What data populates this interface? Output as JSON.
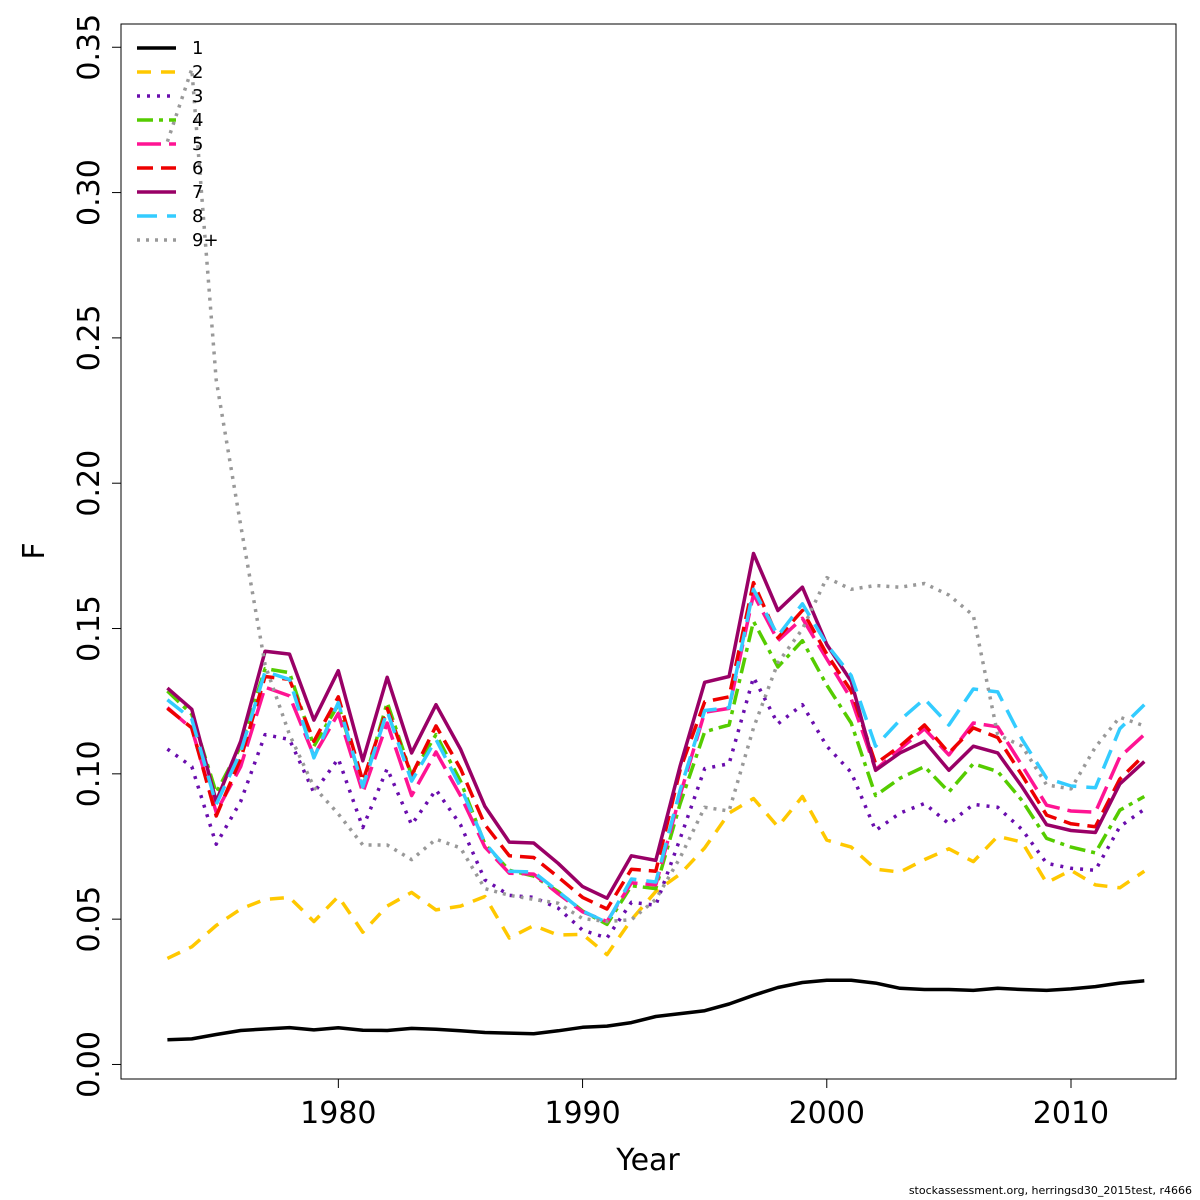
{
  "chart_data": {
    "type": "line",
    "xlabel": "Year",
    "ylabel": "F",
    "xlim": [
      1971.1,
      2014.3
    ],
    "ylim": [
      -0.005,
      0.358
    ],
    "x_ticks": [
      1980,
      1990,
      2000,
      2010
    ],
    "y_ticks": [
      "0.00",
      "0.05",
      "0.10",
      "0.15",
      "0.20",
      "0.25",
      "0.30",
      "0.35"
    ],
    "legend_position": "top-left",
    "x": [
      1973,
      1974,
      1975,
      1976,
      1977,
      1978,
      1979,
      1980,
      1981,
      1982,
      1983,
      1984,
      1985,
      1986,
      1987,
      1988,
      1989,
      1990,
      1991,
      1992,
      1993,
      1994,
      1995,
      1996,
      1997,
      1998,
      1999,
      2000,
      2001,
      2002,
      2003,
      2004,
      2005,
      2006,
      2007,
      2008,
      2009,
      2010,
      2011,
      2012,
      2013
    ],
    "series": [
      {
        "name": "1",
        "color": "#000000",
        "dash": "solid",
        "width": 3.5,
        "values": [
          0.0085,
          0.0088,
          0.0103,
          0.0117,
          0.0122,
          0.0127,
          0.0119,
          0.0126,
          0.0118,
          0.0117,
          0.0124,
          0.0121,
          0.0116,
          0.011,
          0.0108,
          0.0106,
          0.0116,
          0.0128,
          0.0132,
          0.0144,
          0.0165,
          0.0175,
          0.0185,
          0.0208,
          0.0238,
          0.0265,
          0.0282,
          0.029,
          0.029,
          0.028,
          0.0262,
          0.0258,
          0.0258,
          0.0255,
          0.0262,
          0.0258,
          0.0255,
          0.026,
          0.0268,
          0.028,
          0.0288
        ]
      },
      {
        "name": "2",
        "color": "#ffc800",
        "dash": "14,10",
        "width": 3.5,
        "values": [
          0.0365,
          0.0405,
          0.0478,
          0.0535,
          0.0568,
          0.0575,
          0.0492,
          0.0578,
          0.0455,
          0.0545,
          0.0592,
          0.0532,
          0.0545,
          0.0578,
          0.0435,
          0.0478,
          0.0445,
          0.0448,
          0.0378,
          0.0498,
          0.0595,
          0.0655,
          0.0745,
          0.0865,
          0.0915,
          0.0818,
          0.0922,
          0.0772,
          0.0748,
          0.0672,
          0.0662,
          0.0705,
          0.0742,
          0.0698,
          0.0785,
          0.0765,
          0.0625,
          0.0668,
          0.0618,
          0.0608,
          0.0665
        ]
      },
      {
        "name": "3",
        "color": "#6a0dad",
        "dash": "3,7",
        "width": 3.5,
        "values": [
          0.1085,
          0.1025,
          0.0758,
          0.0905,
          0.1135,
          0.1118,
          0.0935,
          0.1052,
          0.0815,
          0.1018,
          0.0825,
          0.0945,
          0.0825,
          0.0635,
          0.0582,
          0.0575,
          0.0538,
          0.0462,
          0.0435,
          0.0558,
          0.0548,
          0.0778,
          0.1018,
          0.1035,
          0.1332,
          0.1172,
          0.1238,
          0.1095,
          0.1005,
          0.0805,
          0.0865,
          0.0898,
          0.0828,
          0.0895,
          0.0885,
          0.0808,
          0.0692,
          0.0675,
          0.0668,
          0.0818,
          0.0878
        ]
      },
      {
        "name": "4",
        "color": "#55cc00",
        "dash": "16,6,4,6",
        "width": 3.5,
        "values": [
          0.1285,
          0.1205,
          0.0935,
          0.1095,
          0.1362,
          0.1348,
          0.1095,
          0.1238,
          0.0955,
          0.1245,
          0.0995,
          0.1135,
          0.0975,
          0.0758,
          0.0668,
          0.0648,
          0.0595,
          0.0528,
          0.0482,
          0.0615,
          0.0605,
          0.0898,
          0.1145,
          0.1168,
          0.1525,
          0.1368,
          0.1458,
          0.1305,
          0.1175,
          0.0925,
          0.0985,
          0.1025,
          0.0938,
          0.1035,
          0.1008,
          0.0908,
          0.0778,
          0.0748,
          0.0728,
          0.0875,
          0.0922
        ]
      },
      {
        "name": "5",
        "color": "#ff1493",
        "dash": "24,8",
        "width": 3.5,
        "values": [
          0.1228,
          0.1155,
          0.0868,
          0.1025,
          0.1298,
          0.1268,
          0.1062,
          0.1208,
          0.0935,
          0.1175,
          0.0925,
          0.1075,
          0.0925,
          0.0748,
          0.0658,
          0.0655,
          0.0588,
          0.0525,
          0.0492,
          0.0625,
          0.0618,
          0.0928,
          0.1212,
          0.1225,
          0.1618,
          0.1458,
          0.1535,
          0.1395,
          0.1258,
          0.1015,
          0.1085,
          0.1155,
          0.1065,
          0.1175,
          0.1162,
          0.1028,
          0.0892,
          0.0872,
          0.0868,
          0.1058,
          0.1135
        ]
      },
      {
        "name": "6",
        "color": "#ee0000",
        "dash": "16,8",
        "width": 3.5,
        "values": [
          0.1225,
          0.1158,
          0.0855,
          0.1052,
          0.1335,
          0.1325,
          0.1112,
          0.1265,
          0.0975,
          0.1225,
          0.0995,
          0.1165,
          0.1018,
          0.0825,
          0.0718,
          0.0712,
          0.0645,
          0.0575,
          0.0535,
          0.0672,
          0.0665,
          0.1015,
          0.1248,
          0.1265,
          0.1658,
          0.1468,
          0.1562,
          0.1412,
          0.1285,
          0.1035,
          0.1095,
          0.1168,
          0.1072,
          0.1158,
          0.1125,
          0.0995,
          0.0858,
          0.0828,
          0.0818,
          0.0982,
          0.1065
        ]
      },
      {
        "name": "7",
        "color": "#990066",
        "dash": "solid",
        "width": 3.5,
        "values": [
          0.1295,
          0.1222,
          0.0905,
          0.1112,
          0.1422,
          0.1412,
          0.1185,
          0.1355,
          0.1045,
          0.1332,
          0.1072,
          0.1238,
          0.1085,
          0.0888,
          0.0765,
          0.0762,
          0.0692,
          0.0612,
          0.0572,
          0.0718,
          0.0702,
          0.1028,
          0.1315,
          0.1335,
          0.1758,
          0.1562,
          0.1642,
          0.1445,
          0.1318,
          0.1012,
          0.1072,
          0.1112,
          0.1012,
          0.1095,
          0.1072,
          0.0955,
          0.0825,
          0.0805,
          0.0798,
          0.0965,
          0.1042
        ]
      },
      {
        "name": "8",
        "color": "#33ccff",
        "dash": "20,10",
        "width": 3.5,
        "values": [
          0.1255,
          0.1188,
          0.0895,
          0.1075,
          0.1352,
          0.1325,
          0.1055,
          0.1245,
          0.0955,
          0.1215,
          0.0975,
          0.1118,
          0.0955,
          0.0762,
          0.0665,
          0.0662,
          0.0595,
          0.0528,
          0.0488,
          0.0638,
          0.0628,
          0.0945,
          0.1218,
          0.1228,
          0.1635,
          0.1475,
          0.1585,
          0.1445,
          0.1338,
          0.1095,
          0.1185,
          0.1258,
          0.1168,
          0.1292,
          0.1282,
          0.1118,
          0.0985,
          0.0958,
          0.0952,
          0.1155,
          0.1238
        ]
      },
      {
        "name": "9+",
        "color": "#999999",
        "dash": "3,6",
        "width": 3.5,
        "values": [
          0.3175,
          0.3425,
          0.2355,
          0.1855,
          0.1375,
          0.1135,
          0.0955,
          0.0862,
          0.0755,
          0.0755,
          0.0705,
          0.0775,
          0.0745,
          0.0605,
          0.0582,
          0.0568,
          0.0555,
          0.0502,
          0.0492,
          0.0498,
          0.0568,
          0.0712,
          0.0885,
          0.0872,
          0.1158,
          0.1382,
          0.1498,
          0.1675,
          0.1635,
          0.1648,
          0.1642,
          0.1655,
          0.1615,
          0.1545,
          0.1135,
          0.1095,
          0.0962,
          0.0948,
          0.1092,
          0.1195,
          0.1165
        ]
      }
    ]
  },
  "footer": {
    "credit": "stockassessment.org, herringsd30_2015test, r4666"
  }
}
